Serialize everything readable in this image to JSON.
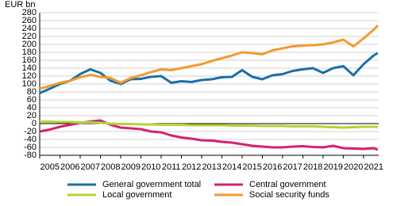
{
  "chart_data": {
    "type": "line",
    "y_axis_label": "EUR bn",
    "x": [
      2005,
      2005.5,
      2006,
      2006.5,
      2007,
      2007.5,
      2008,
      2008.5,
      2009,
      2009.5,
      2010,
      2010.5,
      2011,
      2011.5,
      2012,
      2012.5,
      2013,
      2013.5,
      2014,
      2014.5,
      2015,
      2015.5,
      2016,
      2016.5,
      2017,
      2017.5,
      2018,
      2018.5,
      2019,
      2019.5,
      2020,
      2020.5,
      2021,
      2021.5,
      2021.7
    ],
    "series": [
      {
        "name": "General government total",
        "color": "#1a6fa8",
        "values": [
          77,
          88,
          100,
          108,
          125,
          137,
          128,
          108,
          100,
          112,
          113,
          118,
          120,
          103,
          107,
          105,
          110,
          112,
          117,
          118,
          135,
          118,
          112,
          122,
          125,
          133,
          137,
          140,
          128,
          140,
          145,
          122,
          150,
          172,
          178
        ]
      },
      {
        "name": "Central government",
        "color": "#d6226f",
        "values": [
          -20,
          -15,
          -8,
          -3,
          2,
          5,
          8,
          -3,
          -10,
          -12,
          -14,
          -20,
          -22,
          -30,
          -35,
          -38,
          -42,
          -43,
          -46,
          -48,
          -52,
          -56,
          -58,
          -60,
          -60,
          -58,
          -57,
          -59,
          -60,
          -56,
          -62,
          -63,
          -64,
          -62,
          -66
        ]
      },
      {
        "name": "Local government",
        "color": "#b5d334",
        "values": [
          5,
          5,
          4,
          4,
          3,
          3,
          2,
          0,
          -1,
          -1,
          -2,
          -2,
          -3,
          -3,
          -3,
          -4,
          -4,
          -4,
          -4,
          -5,
          -5,
          -5,
          -6,
          -6,
          -6,
          -7,
          -7,
          -7,
          -8,
          -9,
          -10,
          -9,
          -8,
          -8,
          -9
        ]
      },
      {
        "name": "Social security funds",
        "color": "#f39a2d",
        "values": [
          88,
          95,
          103,
          108,
          117,
          123,
          118,
          115,
          103,
          115,
          122,
          130,
          137,
          135,
          140,
          145,
          150,
          158,
          165,
          172,
          180,
          178,
          175,
          185,
          190,
          195,
          197,
          198,
          200,
          205,
          212,
          195,
          215,
          237,
          248
        ]
      }
    ],
    "xlim": [
      2005,
      2021.75
    ],
    "xticks": [
      2005,
      2006,
      2007,
      2008,
      2009,
      2010,
      2011,
      2012,
      2013,
      2014,
      2015,
      2016,
      2017,
      2018,
      2019,
      2020,
      2021
    ],
    "ylim": [
      -80,
      280
    ],
    "yticks": [
      -80,
      -60,
      -40,
      -20,
      0,
      20,
      40,
      60,
      80,
      100,
      120,
      140,
      160,
      180,
      200,
      220,
      240,
      260,
      280
    ],
    "grid": true
  }
}
